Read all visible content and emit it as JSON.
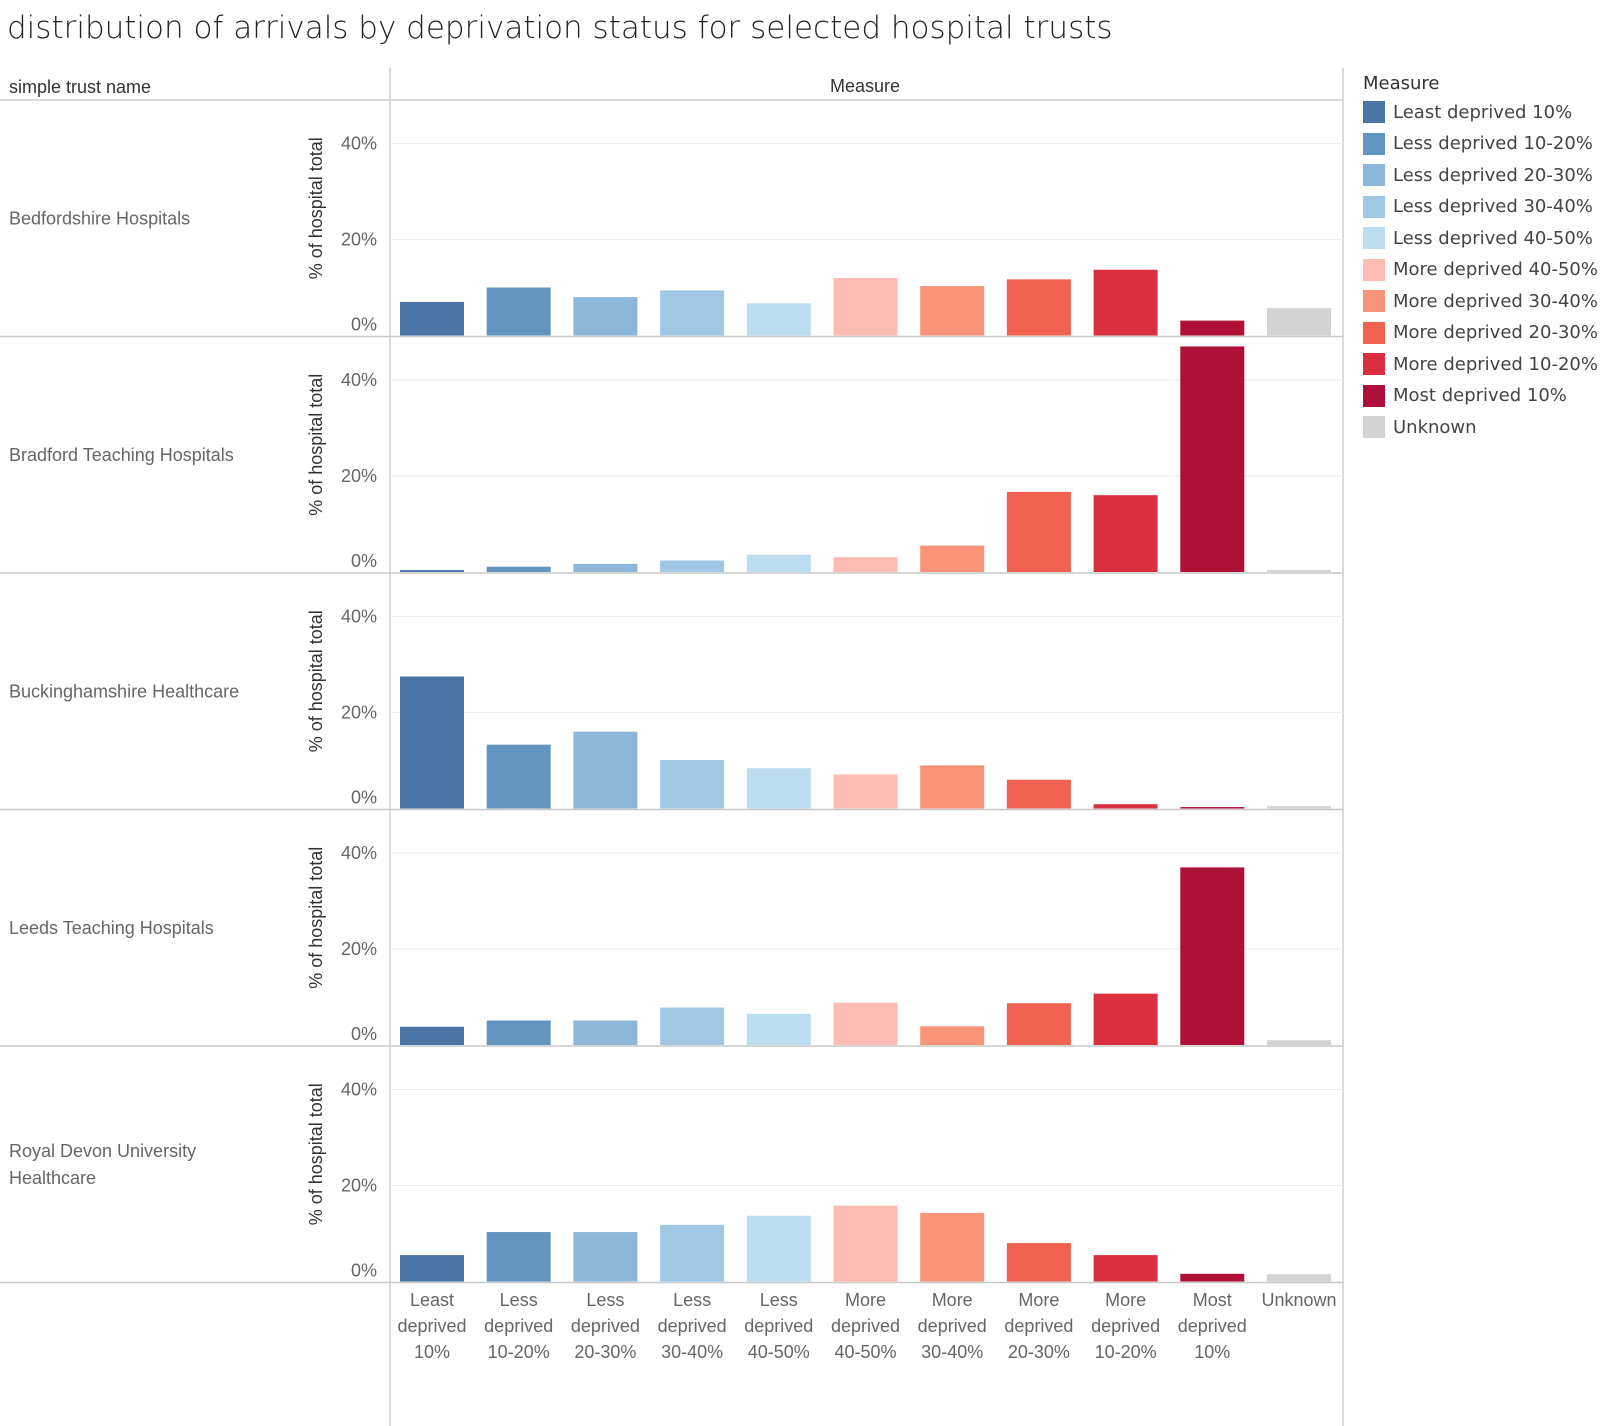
{
  "title": "distribution of arrivals by deprivation status for selected hospital trusts",
  "header": {
    "row_header": "simple trust name",
    "column_header": "Measure"
  },
  "legend": {
    "title": "Measure",
    "items": [
      {
        "label": "Least deprived 10%",
        "color": "#4A76A6"
      },
      {
        "label": "Less deprived 10-20%",
        "color": "#6194BE"
      },
      {
        "label": "Less deprived 20-30%",
        "color": "#8CB7D9"
      },
      {
        "label": "Less deprived 30-40%",
        "color": "#A0C8E4"
      },
      {
        "label": "Less deprived 40-50%",
        "color": "#BCDDF0"
      },
      {
        "label": "More deprived 40-50%",
        "color": "#FDBCB1"
      },
      {
        "label": "More deprived 30-40%",
        "color": "#FA9479"
      },
      {
        "label": "More deprived 20-30%",
        "color": "#F0614F"
      },
      {
        "label": "More deprived 10-20%",
        "color": "#D92F3F"
      },
      {
        "label": "Most deprived 10%",
        "color": "#AF1038"
      },
      {
        "label": "Unknown",
        "color": "#D3D3D3"
      }
    ]
  },
  "chart_data": {
    "type": "bar",
    "ylabel": "% of hospital total",
    "yticks": [
      "0%",
      "20%",
      "40%"
    ],
    "ylim": [
      0,
      48
    ],
    "categories": [
      [
        "Least",
        "deprived",
        "10%"
      ],
      [
        "Less",
        "deprived",
        "10-20%"
      ],
      [
        "Less",
        "deprived",
        "20-30%"
      ],
      [
        "Less",
        "deprived",
        "30-40%"
      ],
      [
        "Less",
        "deprived",
        "40-50%"
      ],
      [
        "More",
        "deprived",
        "40-50%"
      ],
      [
        "More",
        "deprived",
        "30-40%"
      ],
      [
        "More",
        "deprived",
        "20-30%"
      ],
      [
        "More",
        "deprived",
        "10-20%"
      ],
      [
        "Most",
        "deprived",
        "10%"
      ],
      [
        "Unknown"
      ]
    ],
    "series": [
      {
        "name": "Bedfordshire Hospitals",
        "name_lines": [
          "Bedfordshire Hospitals"
        ],
        "values": [
          7.0,
          10.0,
          8.0,
          9.4,
          6.7,
          12.0,
          10.3,
          11.7,
          13.7,
          3.1,
          5.7
        ]
      },
      {
        "name": "Bradford Teaching Hospitals",
        "name_lines": [
          "Bradford Teaching Hospitals"
        ],
        "values": [
          0.4,
          1.1,
          1.7,
          2.4,
          3.6,
          3.1,
          5.5,
          16.7,
          16.0,
          47.0,
          0.4
        ]
      },
      {
        "name": "Buckinghamshire Healthcare",
        "name_lines": [
          "Buckinghamshire Healthcare"
        ],
        "values": [
          27.5,
          13.3,
          16.0,
          10.1,
          8.4,
          7.1,
          9.0,
          6.0,
          0.9,
          0.3,
          0.5
        ]
      },
      {
        "name": "Leeds Teaching Hospitals",
        "name_lines": [
          "Leeds Teaching Hospitals"
        ],
        "values": [
          3.8,
          5.1,
          5.1,
          7.8,
          6.5,
          8.8,
          3.9,
          8.7,
          10.7,
          37.0,
          1.0
        ]
      },
      {
        "name": "Royal Devon University Healthcare",
        "name_lines": [
          "Royal Devon University",
          "Healthcare"
        ],
        "values": [
          5.5,
          10.3,
          10.3,
          11.8,
          13.7,
          15.8,
          14.3,
          8.0,
          5.5,
          1.6,
          1.5
        ]
      }
    ],
    "legend_position": "right",
    "grid": true
  }
}
